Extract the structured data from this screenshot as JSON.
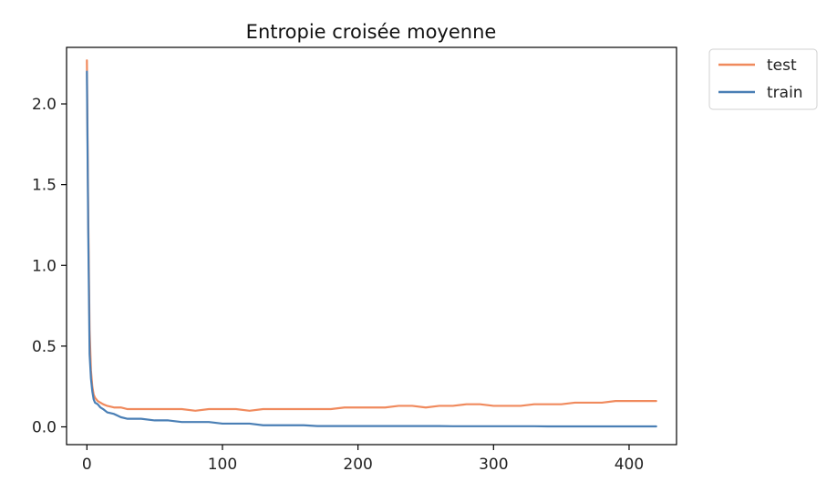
{
  "chart_data": {
    "type": "line",
    "title": "Entropie croisée moyenne",
    "xlabel": "",
    "ylabel": "",
    "xlim": [
      -15,
      435
    ],
    "ylim": [
      -0.11,
      2.35
    ],
    "xticks": [
      0,
      100,
      200,
      300,
      400
    ],
    "yticks": [
      0.0,
      0.5,
      1.0,
      1.5,
      2.0
    ],
    "xtick_labels": [
      "0",
      "100",
      "200",
      "300",
      "400"
    ],
    "ytick_labels": [
      "0.0",
      "0.5",
      "1.0",
      "1.5",
      "2.0"
    ],
    "grid": false,
    "legend": {
      "position": "outside-top-right",
      "entries": [
        "test",
        "train"
      ]
    },
    "series": [
      {
        "name": "test",
        "color": "#f08a5d",
        "x": [
          0,
          1,
          2,
          3,
          4,
          5,
          6,
          8,
          10,
          12,
          15,
          20,
          25,
          30,
          40,
          50,
          60,
          70,
          80,
          90,
          100,
          110,
          120,
          130,
          140,
          150,
          160,
          170,
          180,
          190,
          200,
          210,
          220,
          230,
          240,
          250,
          260,
          270,
          280,
          290,
          300,
          310,
          320,
          330,
          340,
          350,
          360,
          370,
          380,
          390,
          400,
          410,
          420
        ],
        "y": [
          2.27,
          1.3,
          0.6,
          0.35,
          0.25,
          0.2,
          0.18,
          0.16,
          0.15,
          0.14,
          0.13,
          0.12,
          0.12,
          0.11,
          0.11,
          0.11,
          0.11,
          0.11,
          0.1,
          0.11,
          0.11,
          0.11,
          0.1,
          0.11,
          0.11,
          0.11,
          0.11,
          0.11,
          0.11,
          0.12,
          0.12,
          0.12,
          0.12,
          0.13,
          0.13,
          0.12,
          0.13,
          0.13,
          0.14,
          0.14,
          0.13,
          0.13,
          0.13,
          0.14,
          0.14,
          0.14,
          0.15,
          0.15,
          0.15,
          0.16,
          0.16,
          0.16,
          0.16
        ]
      },
      {
        "name": "train",
        "color": "#4a7fb5",
        "x": [
          0,
          1,
          2,
          3,
          4,
          5,
          6,
          8,
          10,
          12,
          15,
          20,
          25,
          30,
          40,
          50,
          60,
          70,
          80,
          90,
          100,
          110,
          120,
          130,
          140,
          150,
          160,
          170,
          180,
          190,
          200,
          210,
          220,
          230,
          240,
          250,
          260,
          270,
          280,
          290,
          300,
          310,
          320,
          330,
          340,
          350,
          360,
          370,
          380,
          390,
          400,
          410,
          420
        ],
        "y": [
          2.2,
          1.2,
          0.45,
          0.3,
          0.22,
          0.17,
          0.15,
          0.14,
          0.12,
          0.11,
          0.09,
          0.08,
          0.06,
          0.05,
          0.05,
          0.04,
          0.04,
          0.03,
          0.03,
          0.03,
          0.02,
          0.02,
          0.02,
          0.01,
          0.01,
          0.01,
          0.01,
          0.005,
          0.005,
          0.005,
          0.005,
          0.005,
          0.005,
          0.005,
          0.005,
          0.005,
          0.005,
          0.004,
          0.004,
          0.004,
          0.004,
          0.004,
          0.004,
          0.004,
          0.003,
          0.003,
          0.003,
          0.003,
          0.003,
          0.003,
          0.003,
          0.003,
          0.003
        ]
      }
    ]
  }
}
